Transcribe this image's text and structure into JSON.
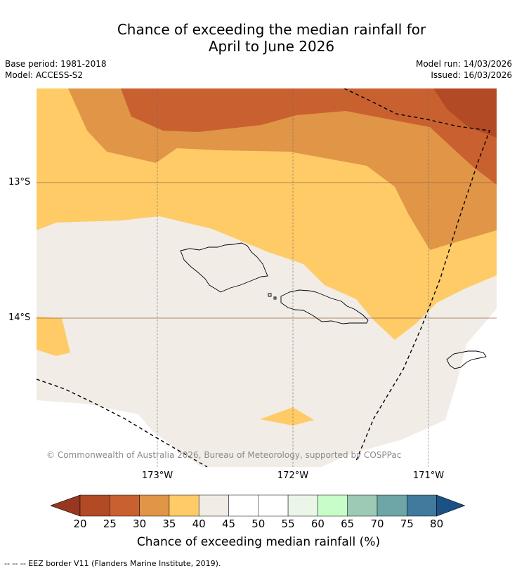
{
  "title": {
    "line1": "Chance of exceeding the median rainfall for",
    "line2": "April to June 2026"
  },
  "meta": {
    "base_period": "Base period: 1981-2018",
    "model": "Model: ACCESS-S2",
    "model_run": "Model run: 14/03/2026",
    "issued": "Issued: 16/03/2026"
  },
  "map": {
    "lat_labels": [
      "13°S",
      "14°S"
    ],
    "lon_labels": [
      "173°W",
      "172°W",
      "171°W"
    ],
    "copyright": "© Commonwealth of Australia 2026, Bureau of Meteorology, supported by COSPPac"
  },
  "colorbar": {
    "ticks": [
      "20",
      "25",
      "30",
      "35",
      "40",
      "45",
      "50",
      "55",
      "60",
      "65",
      "70",
      "75",
      "80"
    ],
    "colors": [
      "#b14a25",
      "#c8612f",
      "#e09547",
      "#fecb67",
      "#f1ece6",
      "#ffffff",
      "#ffffff",
      "#eaf7e8",
      "#c6fdc9",
      "#9ccab5",
      "#6ea5a6",
      "#407a9d"
    ],
    "under_color": "#983620",
    "over_color": "#1c5186",
    "label": "Chance of exceeding median rainfall (%)"
  },
  "legend_note": "-- -- -- EEZ border V11 (Flanders Marine Institute, 2019)."
}
